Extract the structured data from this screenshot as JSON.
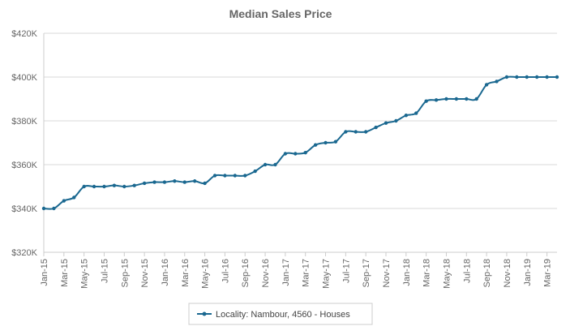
{
  "chart_data": {
    "type": "line",
    "title": "Median Sales Price",
    "xlabel": "",
    "ylabel": "",
    "ylim": [
      320000,
      420000
    ],
    "y_ticks": [
      320000,
      340000,
      360000,
      380000,
      400000,
      420000
    ],
    "y_tick_labels": [
      "$320K",
      "$340K",
      "$360K",
      "$380K",
      "$400K",
      "$420K"
    ],
    "x_tick_labels": [
      "Jan-15",
      "Mar-15",
      "May-15",
      "Jul-15",
      "Sep-15",
      "Nov-15",
      "Jan-16",
      "Mar-16",
      "May-16",
      "Jul-16",
      "Sep-16",
      "Nov-16",
      "Jan-17",
      "Mar-17",
      "May-17",
      "Jul-17",
      "Sep-17",
      "Nov-17",
      "Jan-18",
      "Mar-18",
      "May-18",
      "Jul-18",
      "Sep-18",
      "Nov-18",
      "Jan-19",
      "Mar-19"
    ],
    "x": [
      "Jan-15",
      "Feb-15",
      "Mar-15",
      "Apr-15",
      "May-15",
      "Jun-15",
      "Jul-15",
      "Aug-15",
      "Sep-15",
      "Oct-15",
      "Nov-15",
      "Dec-15",
      "Jan-16",
      "Feb-16",
      "Mar-16",
      "Apr-16",
      "May-16",
      "Jun-16",
      "Jul-16",
      "Aug-16",
      "Sep-16",
      "Oct-16",
      "Nov-16",
      "Dec-16",
      "Jan-17",
      "Feb-17",
      "Mar-17",
      "Apr-17",
      "May-17",
      "Jun-17",
      "Jul-17",
      "Aug-17",
      "Sep-17",
      "Oct-17",
      "Nov-17",
      "Dec-17",
      "Jan-18",
      "Feb-18",
      "Mar-18",
      "Apr-18",
      "May-18",
      "Jun-18",
      "Jul-18",
      "Aug-18",
      "Sep-18",
      "Oct-18",
      "Nov-18",
      "Dec-18",
      "Jan-19",
      "Feb-19",
      "Mar-19",
      "Apr-19"
    ],
    "series": [
      {
        "name": "Locality: Nambour, 4560 - Houses",
        "color": "#1a6890",
        "values": [
          340000,
          340000,
          343500,
          345000,
          350000,
          350000,
          350000,
          350500,
          350000,
          350500,
          351500,
          352000,
          352000,
          352500,
          352000,
          352500,
          351500,
          355000,
          355000,
          355000,
          355000,
          357000,
          360000,
          360000,
          365000,
          365000,
          365500,
          369000,
          370000,
          370500,
          375000,
          375000,
          375000,
          377000,
          379000,
          380000,
          382500,
          383500,
          389000,
          389500,
          390000,
          390000,
          390000,
          390000,
          396500,
          398000,
          400000,
          400000,
          400000,
          400000,
          400000,
          400000
        ]
      }
    ],
    "grid": true,
    "legend_position": "bottom-center"
  }
}
